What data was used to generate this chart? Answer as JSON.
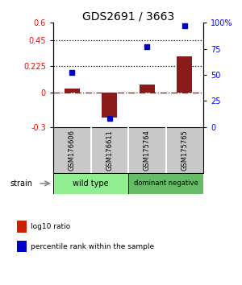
{
  "title": "GDS2691 / 3663",
  "categories": [
    "GSM176606",
    "GSM176611",
    "GSM175764",
    "GSM175765"
  ],
  "log10_ratio": [
    0.03,
    -0.22,
    0.07,
    0.31
  ],
  "percentile_rank": [
    52,
    8,
    77,
    97
  ],
  "bar_color": "#8B1A1A",
  "dot_color": "#0000CC",
  "ylim_left": [
    -0.3,
    0.6
  ],
  "ylim_right": [
    0,
    100
  ],
  "yticks_left": [
    -0.3,
    0,
    0.225,
    0.45,
    0.6
  ],
  "ytick_labels_left": [
    "-0.3",
    "0",
    "0.225",
    "0.45",
    "0.6"
  ],
  "yticks_right": [
    0,
    25,
    50,
    75,
    100
  ],
  "ytick_labels_right": [
    "0",
    "25",
    "50",
    "75",
    "100%"
  ],
  "hlines": [
    0.225,
    0.45
  ],
  "groups": [
    {
      "label": "wild type",
      "indices": [
        0,
        1
      ],
      "color": "#90EE90"
    },
    {
      "label": "dominant negative",
      "indices": [
        2,
        3
      ],
      "color": "#66BB66"
    }
  ],
  "strain_label": "strain",
  "legend": [
    {
      "color": "#CC2200",
      "label": "log10 ratio"
    },
    {
      "color": "#0000CC",
      "label": "percentile rank within the sample"
    }
  ],
  "background_color": "#FFFFFF",
  "gsm_bg_color": "#C8C8C8",
  "gsm_sep_color": "#FFFFFF"
}
